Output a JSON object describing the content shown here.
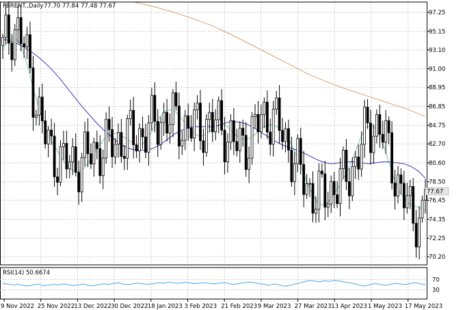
{
  "header": {
    "symbol": "FBRENT.,Daily",
    "ohlc": "77.70 77.84 77.48 77.67"
  },
  "price_badge": "77.67",
  "rsi_label": "RSI(14) 50.6674",
  "colors": {
    "candle": "#000000",
    "ma_fast": "#7dc9a8",
    "ma_mid": "#3535b5",
    "ma_slow": "#d9a06b",
    "rsi": "#4aa3df",
    "grid": "#c8c8c8",
    "badge_bg": "#e6e6e6"
  },
  "chart_data": [
    {
      "type": "candlestick",
      "title": "FBRENT.,Daily",
      "ylim": [
        69.3,
        98.4
      ],
      "y_ticks": [
        "97.25",
        "95.15",
        "93.10",
        "91.00",
        "88.95",
        "86.85",
        "84.75",
        "82.70",
        "80.60",
        "78.50",
        "76.45",
        "74.35",
        "72.25",
        "70.20"
      ],
      "x_ticks": [
        "9 Nov 2022",
        "25 Nov 2022",
        "13 Dec 2022",
        "30 Dec 2022",
        "18 Jan 2023",
        "3 Feb 2023",
        "21 Feb 2023",
        "9 Mar 2023",
        "27 Mar 2023",
        "13 Apr 2023",
        "1 May 2023",
        "17 May 2023"
      ],
      "last_price": 77.67,
      "series": [
        {
          "name": "MA fast",
          "style": "line",
          "values": [
            93.2,
            94.0,
            94.5,
            94.0,
            92.5,
            90.3,
            88.0,
            86.0,
            84.3,
            83.0,
            82.0,
            81.0,
            80.2,
            79.7,
            79.6,
            80.0,
            80.8,
            81.8,
            82.7,
            83.4,
            83.8,
            83.9,
            83.6,
            83.2,
            82.8,
            82.5,
            82.8,
            83.5,
            84.6,
            85.7,
            86.3,
            86.5,
            86.2,
            85.5,
            84.7,
            84.0,
            83.6,
            83.6,
            84.0,
            84.5,
            84.8,
            84.8,
            84.3,
            83.7,
            83.3,
            83.2,
            83.4,
            84.0,
            84.5,
            84.8,
            84.8,
            84.4,
            83.8,
            83.0,
            81.8,
            80.3,
            78.7,
            77.3,
            76.3,
            75.9,
            76.2,
            77.0,
            78.0,
            79.0,
            80.2,
            81.7,
            83.3,
            84.5,
            84.8,
            84.3,
            83.1,
            81.2,
            79.3,
            77.6,
            76.8,
            76.1,
            75.8,
            75.6,
            75.3
          ]
        },
        {
          "name": "MA mid",
          "style": "line",
          "values": [
            94.3,
            94.1,
            93.8,
            93.4,
            92.9,
            92.3,
            91.6,
            90.8,
            89.9,
            88.9,
            87.9,
            86.9,
            86.0,
            85.1,
            84.3,
            83.6,
            82.9,
            82.4,
            82.1,
            82.0,
            82.0,
            82.2,
            82.6,
            83.2,
            83.8,
            84.2,
            84.5,
            84.6,
            84.6,
            84.6,
            84.7,
            85.0,
            85.2,
            85.1,
            84.9,
            84.5,
            84.0,
            83.5,
            83.0,
            82.6,
            82.3,
            82.0,
            81.7,
            81.3,
            80.9,
            80.6,
            80.5,
            80.6,
            80.7,
            80.7,
            80.6,
            80.5,
            80.6,
            80.7,
            80.7,
            80.6,
            80.5,
            80.2,
            79.7,
            78.9
          ]
        },
        {
          "name": "MA slow",
          "style": "line",
          "values": [
            98.4,
            97.9,
            97.3,
            96.6,
            95.8,
            94.8,
            93.7,
            92.6,
            91.5,
            90.4,
            89.5,
            88.7,
            88.0,
            87.3,
            86.6,
            85.7
          ]
        }
      ]
    },
    {
      "type": "line",
      "title": "RSI(14) 50.6674",
      "ylim": [
        0,
        100
      ],
      "y_ticks": [
        "70",
        "30"
      ],
      "last_value": 50.6674,
      "series": [
        {
          "name": "RSI(14)",
          "values": [
            55,
            52,
            49,
            51,
            47,
            45,
            49,
            52,
            46,
            48,
            51,
            49,
            53,
            50,
            47,
            49,
            52,
            48,
            45,
            50,
            53,
            51,
            55,
            57,
            52,
            50,
            54,
            56,
            53,
            51,
            55,
            58,
            56,
            60,
            57,
            55,
            59,
            57,
            54,
            56,
            58,
            55,
            53,
            56,
            58,
            54,
            51,
            55,
            57,
            60,
            58,
            54,
            51,
            48,
            53,
            49,
            44,
            47,
            52,
            56,
            62,
            66,
            64,
            61,
            65,
            63,
            67,
            64,
            60,
            57,
            53,
            48,
            45,
            50,
            55,
            51,
            47,
            51,
            55,
            53,
            50,
            55,
            58,
            53,
            50
          ]
        }
      ]
    }
  ]
}
